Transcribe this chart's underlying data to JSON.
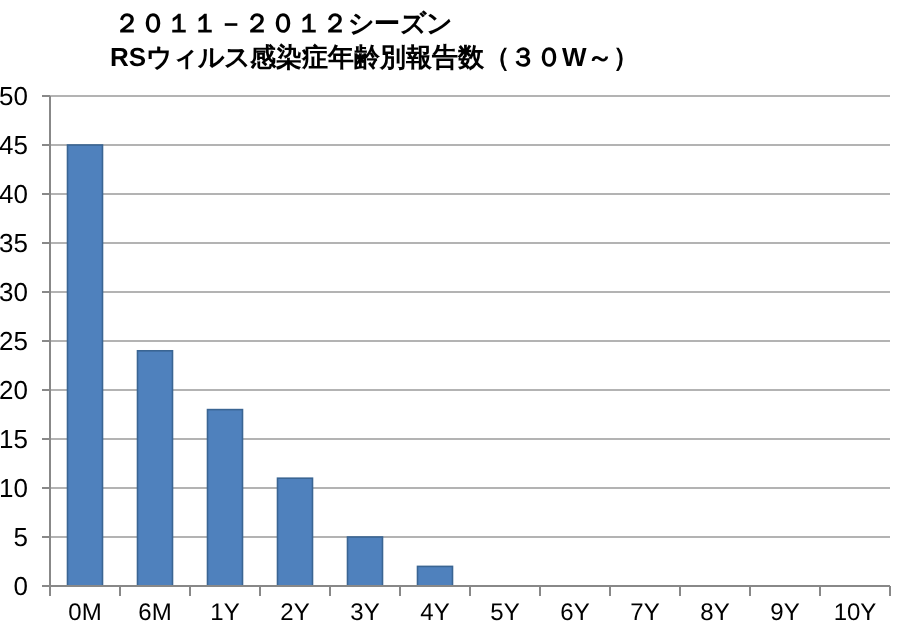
{
  "chart_data": {
    "type": "bar",
    "title": "２０１１－２０１２シーズン\nRSウィルス感染症年齢別報告数（３０W～）",
    "categories": [
      "0M",
      "6M",
      "1Y",
      "2Y",
      "3Y",
      "4Y",
      "5Y",
      "6Y",
      "7Y",
      "8Y",
      "9Y",
      "10Y"
    ],
    "values": [
      45,
      24,
      18,
      11,
      5,
      2,
      0,
      0,
      0,
      0,
      0,
      0
    ],
    "color": "#4f81bd",
    "ylim": [
      0,
      50
    ],
    "yticks": [
      0,
      5,
      10,
      15,
      20,
      25,
      30,
      35,
      40,
      45,
      50
    ],
    "grid": "y"
  }
}
